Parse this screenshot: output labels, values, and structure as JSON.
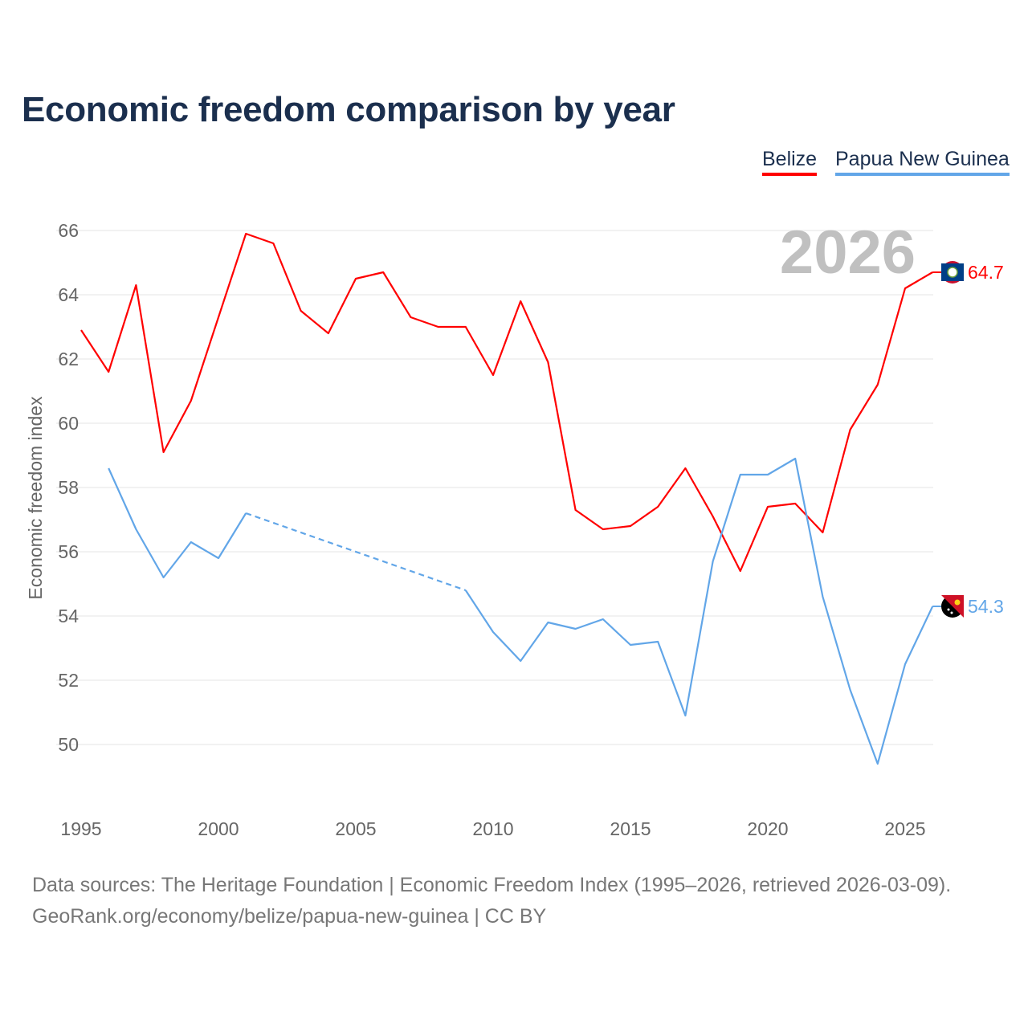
{
  "chart_data": {
    "type": "line",
    "title": "Economic freedom comparison by year",
    "xlabel": "",
    "ylabel": "Economic freedom index",
    "xlim": [
      1995,
      2026
    ],
    "ylim": [
      48.5,
      66.5
    ],
    "yticks": [
      50,
      52,
      54,
      56,
      58,
      60,
      62,
      64,
      66
    ],
    "xticks": [
      1995,
      2000,
      2005,
      2010,
      2015,
      2020,
      2025
    ],
    "grid": true,
    "legend_placement": "top-right",
    "year_label": "2026",
    "x": [
      1995,
      1996,
      1997,
      1998,
      1999,
      2000,
      2001,
      2002,
      2003,
      2004,
      2005,
      2006,
      2007,
      2008,
      2009,
      2010,
      2011,
      2012,
      2013,
      2014,
      2015,
      2016,
      2017,
      2018,
      2019,
      2020,
      2021,
      2022,
      2023,
      2024,
      2025,
      2026
    ],
    "series": [
      {
        "name": "Belize",
        "color": "#ff0000",
        "end_label": "64.7",
        "values": [
          62.9,
          61.6,
          64.3,
          59.1,
          60.7,
          63.3,
          65.9,
          65.6,
          63.5,
          62.8,
          64.5,
          64.7,
          63.3,
          63.0,
          63.0,
          61.5,
          63.8,
          61.9,
          57.3,
          56.7,
          56.8,
          57.4,
          58.6,
          57.1,
          55.4,
          57.4,
          57.5,
          56.6,
          59.8,
          61.2,
          64.2,
          64.7
        ]
      },
      {
        "name": "Papua New Guinea",
        "color": "#62a6e8",
        "end_label": "54.3",
        "values": [
          null,
          58.6,
          56.7,
          55.2,
          56.3,
          55.8,
          57.2,
          null,
          null,
          null,
          null,
          null,
          null,
          null,
          54.8,
          53.5,
          52.6,
          53.8,
          53.6,
          53.9,
          53.1,
          53.2,
          50.9,
          55.7,
          58.4,
          58.4,
          58.9,
          54.6,
          51.7,
          49.4,
          52.5,
          54.3
        ]
      }
    ]
  },
  "footer": {
    "line1": "Data sources: The Heritage Foundation | Economic Freedom Index (1995–2026, retrieved 2026-03-09).",
    "line2": "GeoRank.org/economy/belize/papua-new-guinea | CC BY"
  }
}
